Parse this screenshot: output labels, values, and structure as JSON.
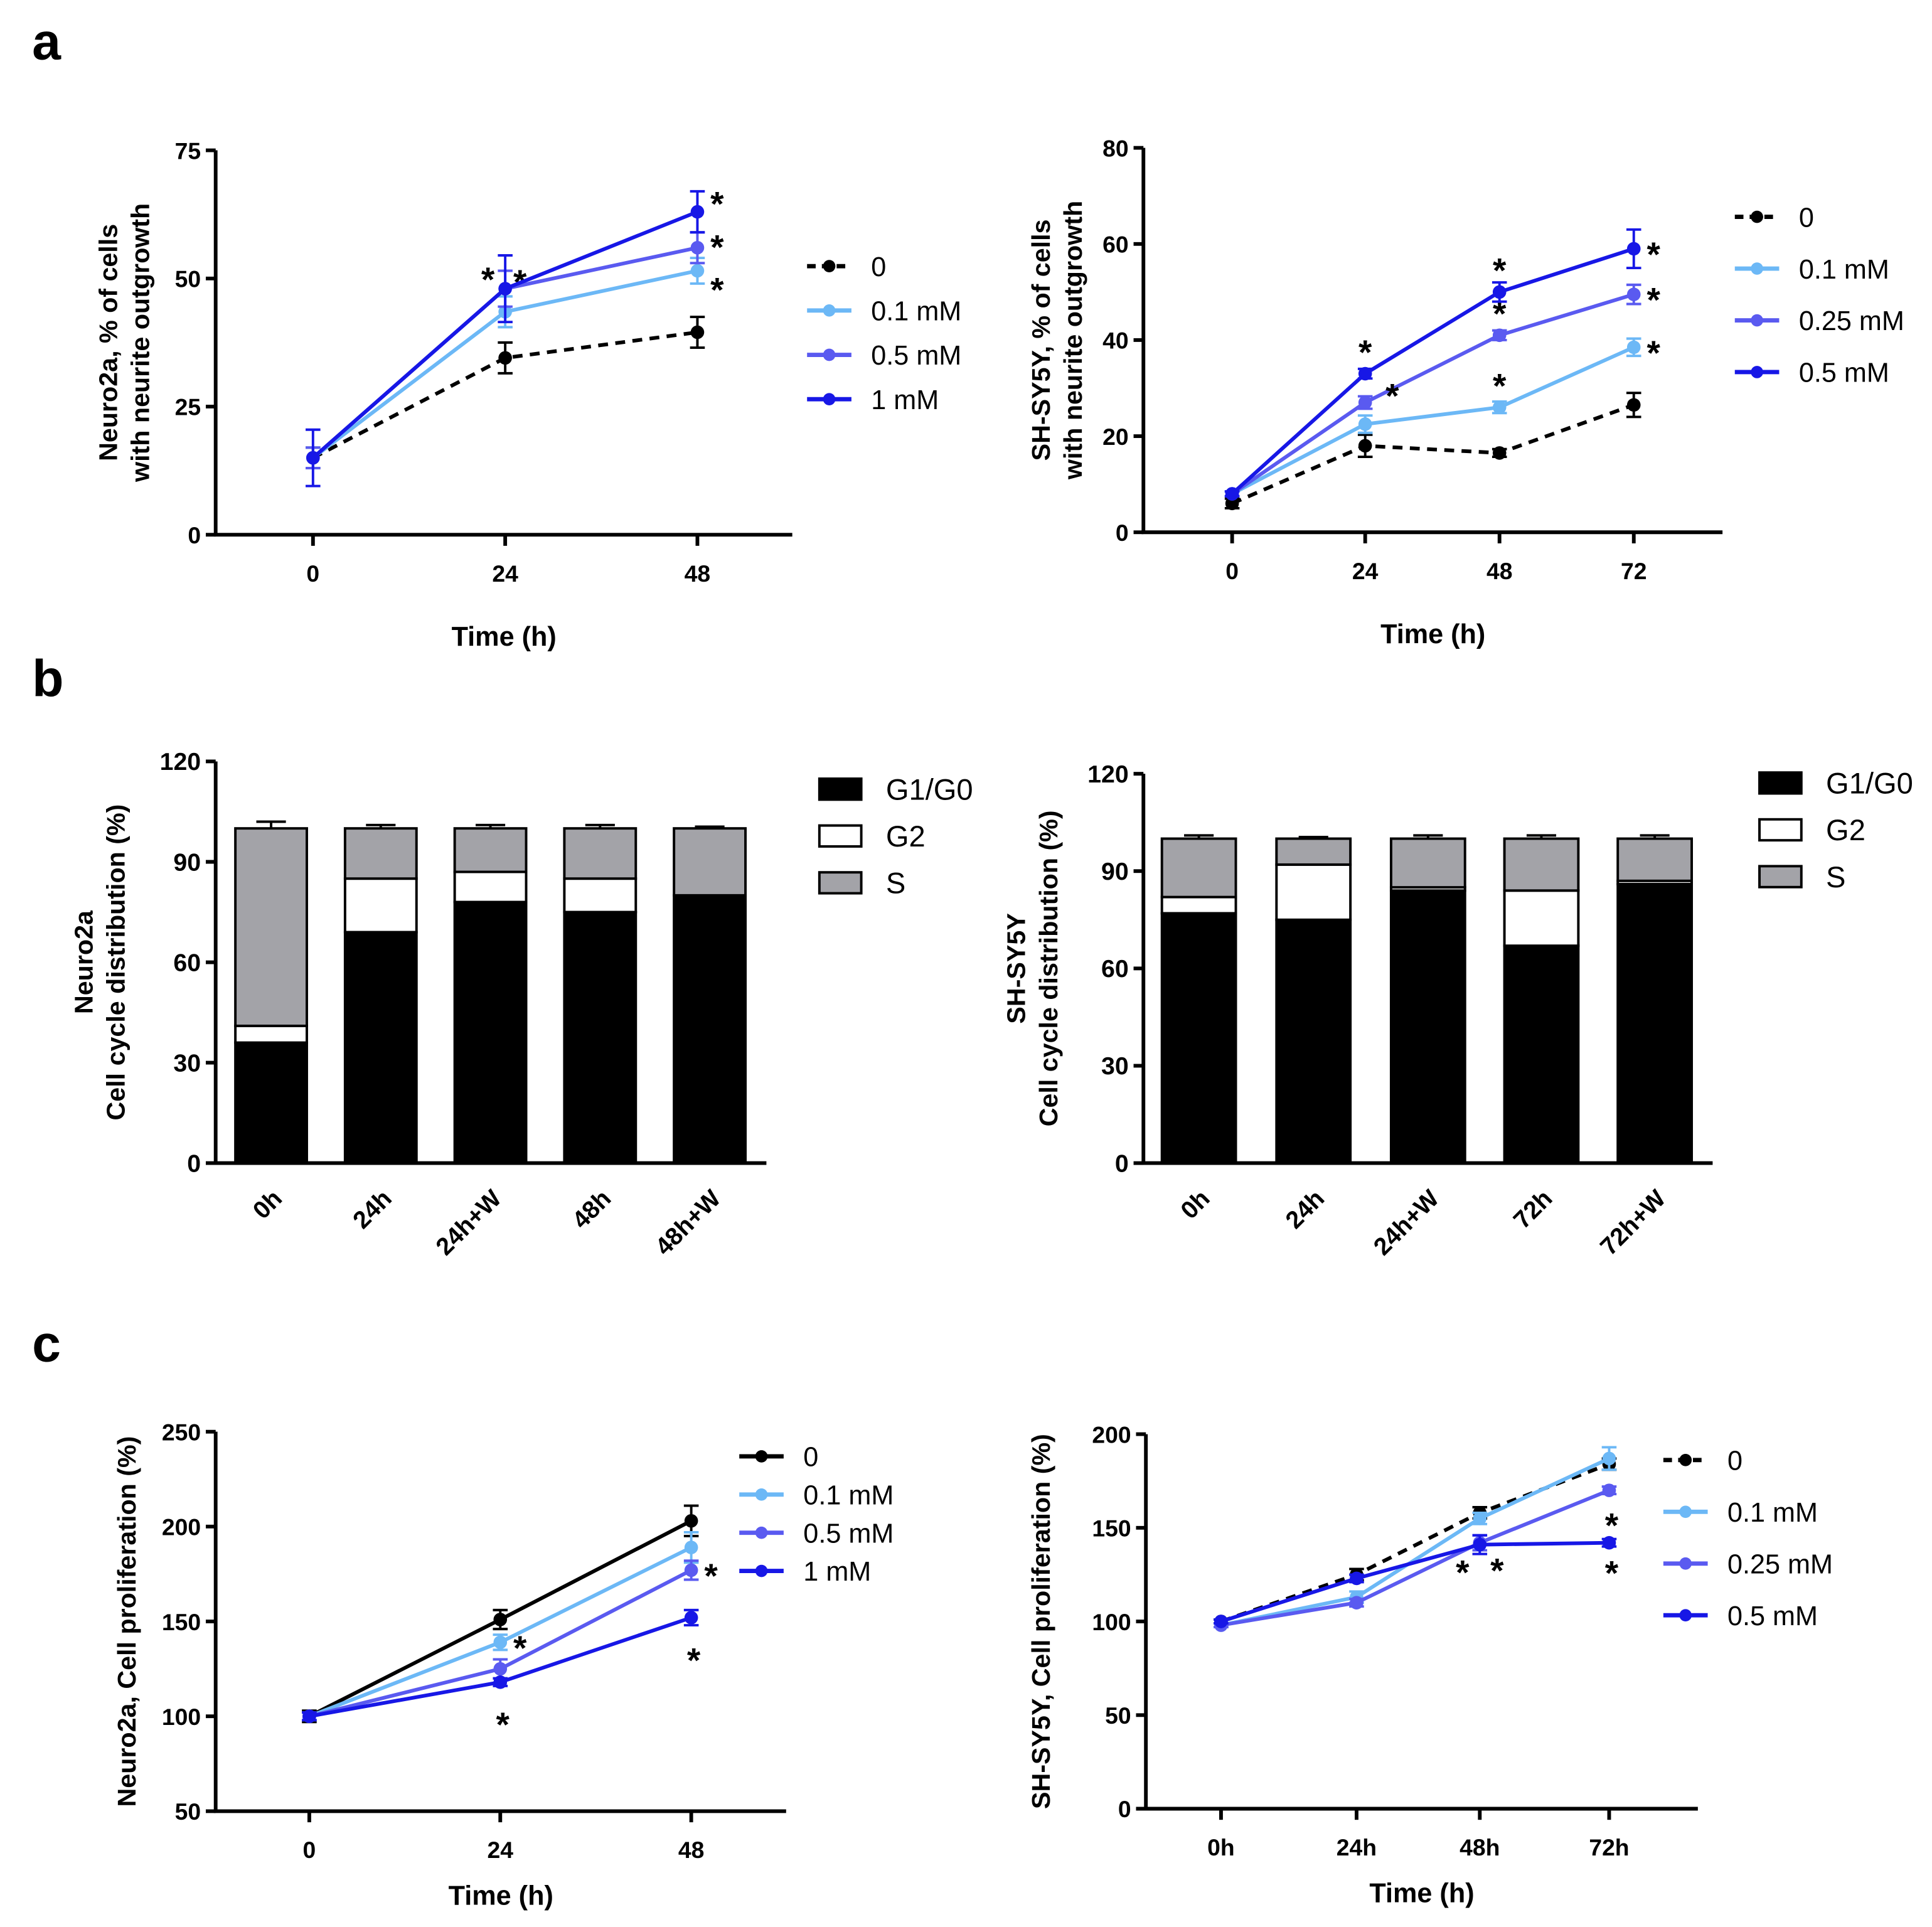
{
  "panel_labels": [
    "a",
    "b",
    "c"
  ],
  "colors": {
    "c0": "#000000",
    "c1": "#6cb8f6",
    "c2": "#5a5af0",
    "c3": "#1717e6",
    "G1/G0": "#000000",
    "G2": "#ffffff",
    "S": "#a3a3a8"
  },
  "chart_data": [
    {
      "id": "a1",
      "type": "line",
      "ylabel": [
        "Neuro2a, % of cells",
        "with neurite outgrowth"
      ],
      "xlabel": "Time (h)",
      "categories": [
        "0",
        "24",
        "48"
      ],
      "ylim": [
        0,
        75
      ],
      "yticks": [
        0,
        25,
        50,
        75
      ],
      "legend_position": "right",
      "series": [
        {
          "name": "0",
          "color": "c0",
          "dashed": true,
          "values": [
            15,
            34.5,
            39.5
          ],
          "errors": [
            2,
            3,
            3
          ],
          "stars": [
            false,
            false,
            false
          ]
        },
        {
          "name": "0.1 mM",
          "color": "c1",
          "values": [
            15,
            43.5,
            51.5
          ],
          "errors": [
            2,
            3,
            2.5
          ],
          "stars": [
            false,
            false,
            true
          ]
        },
        {
          "name": "0.5 mM",
          "color": "c2",
          "values": [
            15,
            48,
            56
          ],
          "errors": [
            2,
            3.5,
            3
          ],
          "stars": [
            false,
            true,
            true
          ]
        },
        {
          "name": "1 mM",
          "color": "c3",
          "values": [
            15,
            48,
            63
          ],
          "errors": [
            5.5,
            6.5,
            4
          ],
          "stars": [
            false,
            true,
            true
          ]
        }
      ]
    },
    {
      "id": "a2",
      "type": "line",
      "ylabel": [
        "SH-SY5Y, % of cells",
        "with neurite outgrowth"
      ],
      "xlabel": "Time (h)",
      "categories": [
        "0",
        "24",
        "48",
        "72"
      ],
      "ylim": [
        0,
        80
      ],
      "yticks": [
        0,
        20,
        40,
        60,
        80
      ],
      "legend_position": "right",
      "series": [
        {
          "name": "0",
          "color": "c0",
          "dashed": true,
          "values": [
            6,
            18,
            16.5,
            26.5
          ],
          "errors": [
            1,
            2.3,
            0.8,
            2.5
          ],
          "stars": [
            false,
            false,
            false,
            false
          ]
        },
        {
          "name": "0.1 mM",
          "color": "c1",
          "values": [
            8,
            22.5,
            26,
            38.5
          ],
          "errors": [
            0.5,
            1.8,
            1.2,
            1.8
          ],
          "stars": [
            false,
            false,
            true,
            true
          ]
        },
        {
          "name": "0.25 mM",
          "color": "c2",
          "values": [
            8,
            27,
            41,
            49.5
          ],
          "errors": [
            0.5,
            1.3,
            1,
            2
          ],
          "stars": [
            false,
            true,
            true,
            true
          ]
        },
        {
          "name": "0.5 mM",
          "color": "c3",
          "values": [
            8,
            33,
            50,
            59
          ],
          "errors": [
            0.5,
            1,
            2,
            4
          ],
          "stars": [
            false,
            true,
            true,
            true
          ]
        }
      ]
    },
    {
      "id": "b1",
      "type": "bar",
      "stacked": true,
      "ylabel": [
        "Neuro2a",
        "Cell cycle distribution (%)"
      ],
      "categories": [
        "0h",
        "24h",
        "24h+W",
        "48h",
        "48h+W"
      ],
      "ylim": [
        0,
        120
      ],
      "yticks": [
        0,
        30,
        60,
        90,
        120
      ],
      "legend_position": "right",
      "series": [
        {
          "name": "G1/G0",
          "values": [
            36,
            69,
            78,
            75,
            80
          ],
          "errors": [
            2.5,
            1.5,
            2.5,
            2.5,
            2.5
          ]
        },
        {
          "name": "G2",
          "values": [
            5,
            16,
            9,
            10,
            0
          ],
          "errors": [
            1,
            1,
            1,
            1,
            0
          ]
        },
        {
          "name": "S",
          "values": [
            59,
            15,
            13,
            15,
            20
          ],
          "errors": [
            2,
            1,
            1,
            1,
            0.5
          ]
        }
      ]
    },
    {
      "id": "b2",
      "type": "bar",
      "stacked": true,
      "ylabel": [
        "SH-SY5Y",
        "Cell cycle distribution (%)"
      ],
      "categories": [
        "0h",
        "24h",
        "24h+W",
        "72h",
        "72h+W"
      ],
      "ylim": [
        0,
        120
      ],
      "yticks": [
        0,
        30,
        60,
        90,
        120
      ],
      "legend_position": "right",
      "series": [
        {
          "name": "G1/G0",
          "values": [
            77,
            75,
            84,
            67,
            86
          ],
          "errors": [
            1.5,
            2,
            1,
            2,
            0.5
          ]
        },
        {
          "name": "G2",
          "values": [
            5,
            17,
            1,
            17,
            1
          ],
          "errors": [
            0.5,
            1,
            1,
            1,
            0.3
          ]
        },
        {
          "name": "S",
          "values": [
            18,
            8,
            15,
            16,
            13
          ],
          "errors": [
            1,
            0.5,
            1,
            1,
            1
          ]
        }
      ]
    },
    {
      "id": "c1",
      "type": "line",
      "ylabel": [
        "Neuro2a, Cell proliferation (%)"
      ],
      "xlabel": "Time (h)",
      "categories": [
        "0",
        "24",
        "48"
      ],
      "ylim": [
        50,
        250
      ],
      "yticks": [
        50,
        100,
        150,
        200,
        250
      ],
      "legend_position": "top-right",
      "series": [
        {
          "name": "0",
          "color": "c0",
          "values": [
            100,
            151,
            203
          ],
          "errors": [
            3,
            5,
            8
          ],
          "stars": [
            false,
            false,
            false
          ]
        },
        {
          "name": "0.1 mM",
          "color": "c1",
          "values": [
            100,
            139,
            189
          ],
          "errors": [
            2,
            4,
            8
          ],
          "stars": [
            false,
            true,
            false
          ]
        },
        {
          "name": "0.5 mM",
          "color": "c2",
          "values": [
            100,
            125,
            177
          ],
          "errors": [
            2,
            5,
            5
          ],
          "stars": [
            false,
            false,
            true
          ]
        },
        {
          "name": "1 mM",
          "color": "c3",
          "values": [
            100,
            118,
            152
          ],
          "errors": [
            2,
            2,
            4
          ],
          "stars": [
            false,
            true,
            true
          ]
        }
      ]
    },
    {
      "id": "c2",
      "type": "line",
      "ylabel": [
        "SH-SY5Y, Cell proliferation (%)"
      ],
      "xlabel": "Time (h)",
      "categories": [
        "0h",
        "24h",
        "48h",
        "72h"
      ],
      "ylim": [
        0,
        200
      ],
      "yticks": [
        0,
        50,
        100,
        150,
        200
      ],
      "legend_position": "top-right",
      "series": [
        {
          "name": "0",
          "color": "c0",
          "dashed": true,
          "values": [
            100,
            125,
            158,
            184
          ],
          "errors": [
            1,
            3,
            3,
            3
          ],
          "stars": [
            false,
            false,
            false,
            false
          ]
        },
        {
          "name": "0.1 mM",
          "color": "c1",
          "values": [
            98,
            113,
            155,
            187
          ],
          "errors": [
            1,
            3,
            3,
            6
          ],
          "stars": [
            false,
            false,
            false,
            false
          ]
        },
        {
          "name": "0.25 mM",
          "color": "c2",
          "values": [
            98,
            110,
            142,
            170
          ],
          "errors": [
            1,
            2,
            4,
            2
          ],
          "stars": [
            false,
            false,
            true,
            true
          ]
        },
        {
          "name": "0.5 mM",
          "color": "c3",
          "values": [
            100,
            123,
            141,
            142
          ],
          "errors": [
            1,
            2,
            5,
            2
          ],
          "stars": [
            false,
            false,
            true,
            true
          ]
        }
      ]
    }
  ]
}
